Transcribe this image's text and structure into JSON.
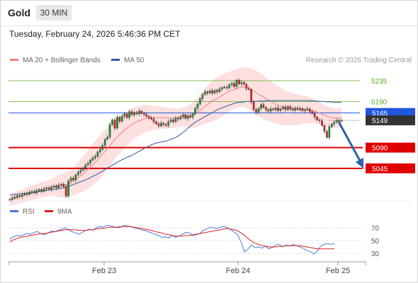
{
  "header": {
    "asset": "Gold",
    "timeframe": "30 MIN"
  },
  "datetime": "Tuesday, February 24, 2026 5:46:36 PM CET",
  "legend": [
    {
      "label": "MA 20 + Bollinger Bands",
      "color": "#f08080"
    },
    {
      "label": "MA 50",
      "color": "#2e5a9e"
    }
  ],
  "credit": "Research © 2026 Trading Central",
  "rsi_legend": [
    {
      "label": "RSI",
      "color": "#4a7fd4"
    },
    {
      "label": "9MA",
      "color": "#e02020"
    }
  ],
  "chart_data": [
    {
      "type": "candlestick",
      "title": "Gold 30 MIN",
      "x_ticks": [
        "Feb 23",
        "Feb 24",
        "Feb 25"
      ],
      "last_price": 5149,
      "levels": [
        {
          "label": "5235",
          "value": 5235,
          "role": "resistance",
          "color": "#5aaa1e"
        },
        {
          "label": "5190",
          "value": 5190,
          "role": "resistance",
          "color": "#5aaa1e"
        },
        {
          "label": "5165",
          "value": 5165,
          "role": "pivot",
          "color": "#2255dd"
        },
        {
          "label": "5149",
          "value": 5149,
          "role": "last",
          "color": "#333333"
        },
        {
          "label": "5090",
          "value": 5090,
          "role": "support",
          "color": "#e00000"
        },
        {
          "label": "5045",
          "value": 5045,
          "role": "support",
          "color": "#e00000"
        }
      ],
      "close": [
        4978,
        4981,
        4983,
        4986,
        4984,
        4988,
        4991,
        4989,
        4993,
        4995,
        4992,
        4997,
        4999,
        4996,
        5001,
        5003,
        5000,
        5004,
        5007,
        5003,
        5009,
        5011,
        5006,
        4985,
        5018,
        5024,
        5020,
        5031,
        5037,
        5041,
        5046,
        5052,
        5056,
        5063,
        5068,
        5071,
        5081,
        5086,
        5095,
        5108,
        5113,
        5140,
        5150,
        5132,
        5156,
        5147,
        5158,
        5163,
        5155,
        5168,
        5161,
        5166,
        5163,
        5169,
        5164,
        5162,
        5158,
        5155,
        5152,
        5146,
        5142,
        5137,
        5143,
        5140,
        5138,
        5146,
        5150,
        5146,
        5154,
        5152,
        5157,
        5161,
        5153,
        5159,
        5156,
        5163,
        5175,
        5184,
        5196,
        5205,
        5211,
        5208,
        5213,
        5208,
        5214,
        5211,
        5217,
        5220,
        5221,
        5219,
        5226,
        5229,
        5222,
        5236,
        5228,
        5231,
        5227,
        5218,
        5216,
        5189,
        5172,
        5167,
        5175,
        5183,
        5177,
        5172,
        5169,
        5174,
        5172,
        5176,
        5170,
        5174,
        5178,
        5172,
        5179,
        5174,
        5171,
        5176,
        5173,
        5175,
        5170,
        5172,
        5174,
        5168,
        5164,
        5156,
        5150,
        5148,
        5138,
        5125,
        5112,
        5135,
        5141,
        5145,
        5149,
        5147,
        5149
      ],
      "ma20": [
        4976,
        4978,
        4980,
        4982,
        4984,
        4985,
        4987,
        4989,
        4991,
        4992,
        4994,
        4996,
        4997,
        4999,
        5000,
        5001,
        5003,
        5004,
        5005,
        5006,
        5007,
        5007,
        5008,
        5009,
        5011,
        5014,
        5017,
        5021,
        5025,
        5029,
        5033,
        5038,
        5043,
        5048,
        5053,
        5058,
        5064,
        5070,
        5076,
        5082,
        5088,
        5095,
        5101,
        5107,
        5113,
        5118,
        5123,
        5128,
        5132,
        5136,
        5140,
        5143,
        5146,
        5148,
        5150,
        5152,
        5153,
        5154,
        5154,
        5154,
        5155,
        5155,
        5155,
        5154,
        5154,
        5154,
        5154,
        5154,
        5154,
        5154,
        5155,
        5156,
        5156,
        5157,
        5158,
        5160,
        5163,
        5167,
        5171,
        5175,
        5179,
        5183,
        5187,
        5191,
        5194,
        5197,
        5200,
        5203,
        5206,
        5209,
        5212,
        5214,
        5216,
        5218,
        5220,
        5221,
        5221,
        5220,
        5218,
        5215,
        5212,
        5209,
        5206,
        5203,
        5200,
        5196,
        5193,
        5190,
        5187,
        5184,
        5182,
        5180,
        5178,
        5176,
        5175,
        5174,
        5173,
        5172,
        5172,
        5172,
        5172,
        5172,
        5172,
        5171,
        5170,
        5169,
        5167,
        5165,
        5163,
        5160,
        5158,
        5156,
        5155,
        5154,
        5154,
        5154,
        5154
      ],
      "ma50": [
        4988,
        4988,
        4989,
        4989,
        4990,
        4990,
        4991,
        4991,
        4992,
        4993,
        4993,
        4994,
        4995,
        4995,
        4996,
        4997,
        4998,
        4999,
        4999,
        5000,
        5001,
        5002,
        5003,
        5004,
        5006,
        5008,
        5010,
        5012,
        5014,
        5016,
        5018,
        5020,
        5022,
        5025,
        5028,
        5030,
        5033,
        5036,
        5039,
        5043,
        5046,
        5049,
        5052,
        5055,
        5058,
        5061,
        5064,
        5066,
        5069,
        5071,
        5073,
        5076,
        5079,
        5082,
        5085,
        5088,
        5091,
        5093,
        5096,
        5098,
        5100,
        5101,
        5102,
        5103,
        5104,
        5106,
        5108,
        5110,
        5112,
        5115,
        5119,
        5123,
        5127,
        5132,
        5137,
        5141,
        5145,
        5148,
        5151,
        5154,
        5157,
        5160,
        5163,
        5166,
        5169,
        5172,
        5174,
        5176,
        5178,
        5180,
        5182,
        5184,
        5186,
        5187,
        5188,
        5188,
        5189,
        5190,
        5190,
        5190,
        5190,
        5190,
        5191,
        5191,
        5191,
        5192,
        5192,
        5192,
        5192,
        5192,
        5192,
        5192,
        5192,
        5192,
        5192,
        5192,
        5192,
        5192,
        5192,
        5192,
        5192,
        5192,
        5192,
        5192,
        5191,
        5191,
        5191,
        5190,
        5190,
        5190,
        5189,
        5189,
        5189,
        5188,
        5188,
        5188,
        5188
      ],
      "band_width": [
        12,
        13,
        13,
        14,
        14,
        14,
        15,
        15,
        15,
        16,
        16,
        16,
        16,
        17,
        17,
        17,
        18,
        18,
        20,
        22,
        24,
        25,
        26,
        27,
        28,
        29,
        30,
        32,
        34,
        36,
        38,
        40,
        42,
        44,
        45,
        46,
        47,
        47,
        47,
        46,
        45,
        44,
        43,
        42,
        41,
        40,
        39,
        38,
        37,
        36,
        35,
        34,
        33,
        32,
        31,
        30,
        29,
        28,
        27,
        26,
        25,
        25,
        24,
        23,
        23,
        22,
        22,
        21,
        21,
        20,
        20,
        21,
        22,
        24,
        26,
        28,
        30,
        32,
        34,
        36,
        38,
        40,
        42,
        44,
        45,
        46,
        46,
        46,
        45,
        44,
        43,
        42,
        42,
        42,
        42,
        42,
        43,
        44,
        45,
        46,
        47,
        48,
        48,
        48,
        47,
        46,
        45,
        44,
        43,
        42,
        41,
        40,
        39,
        38,
        37,
        36,
        35,
        34,
        33,
        32,
        31,
        30,
        29,
        28,
        27,
        26,
        25,
        24,
        23,
        22,
        22,
        22,
        22,
        22,
        22,
        22,
        22
      ],
      "forecast_arrow": {
        "from": 5149,
        "to": 5045
      }
    },
    {
      "type": "line",
      "title": "RSI",
      "y_ticks": [
        70,
        50,
        30
      ],
      "ylim": [
        20,
        80
      ],
      "series": [
        {
          "name": "RSI",
          "color": "#4a7fd4",
          "values": [
            52,
            56,
            58,
            57,
            59,
            61,
            60,
            63,
            64,
            61,
            59,
            62,
            65,
            64,
            66,
            68,
            70,
            67,
            64,
            62,
            60,
            63,
            66,
            68,
            66,
            70,
            72,
            71,
            74,
            73,
            72,
            70,
            71,
            74,
            73,
            72,
            70,
            69,
            67,
            66,
            64,
            62,
            60,
            58,
            55,
            56,
            54,
            58,
            55,
            57,
            60,
            63,
            62,
            58,
            59,
            61,
            66,
            68,
            71,
            70,
            69,
            71,
            72,
            70,
            67,
            63,
            59,
            47,
            32,
            37,
            43,
            39,
            40,
            38,
            41,
            37,
            39,
            43,
            44,
            40,
            43,
            41,
            44,
            42,
            40,
            38,
            34,
            33,
            29,
            33,
            41,
            44,
            45,
            44,
            45
          ]
        },
        {
          "name": "9MA",
          "color": "#e02020",
          "values": [
            48,
            51,
            53,
            55,
            56,
            57,
            58,
            59,
            60,
            61,
            61,
            62,
            63,
            64,
            65,
            66,
            67,
            67,
            67,
            67,
            66,
            66,
            66,
            67,
            67,
            68,
            69,
            69,
            70,
            71,
            71,
            71,
            72,
            72,
            72,
            72,
            71,
            70,
            69,
            68,
            67,
            66,
            64,
            63,
            62,
            60,
            59,
            58,
            57,
            57,
            57,
            58,
            58,
            59,
            60,
            61,
            62,
            63,
            64,
            65,
            66,
            67,
            68,
            69,
            68,
            67,
            65,
            62,
            58,
            53,
            49,
            46,
            44,
            42,
            41,
            40,
            40,
            40,
            41,
            41,
            42,
            42,
            42,
            42,
            42,
            41,
            40,
            39,
            38,
            37,
            37,
            37,
            37,
            37,
            37
          ]
        }
      ]
    }
  ]
}
